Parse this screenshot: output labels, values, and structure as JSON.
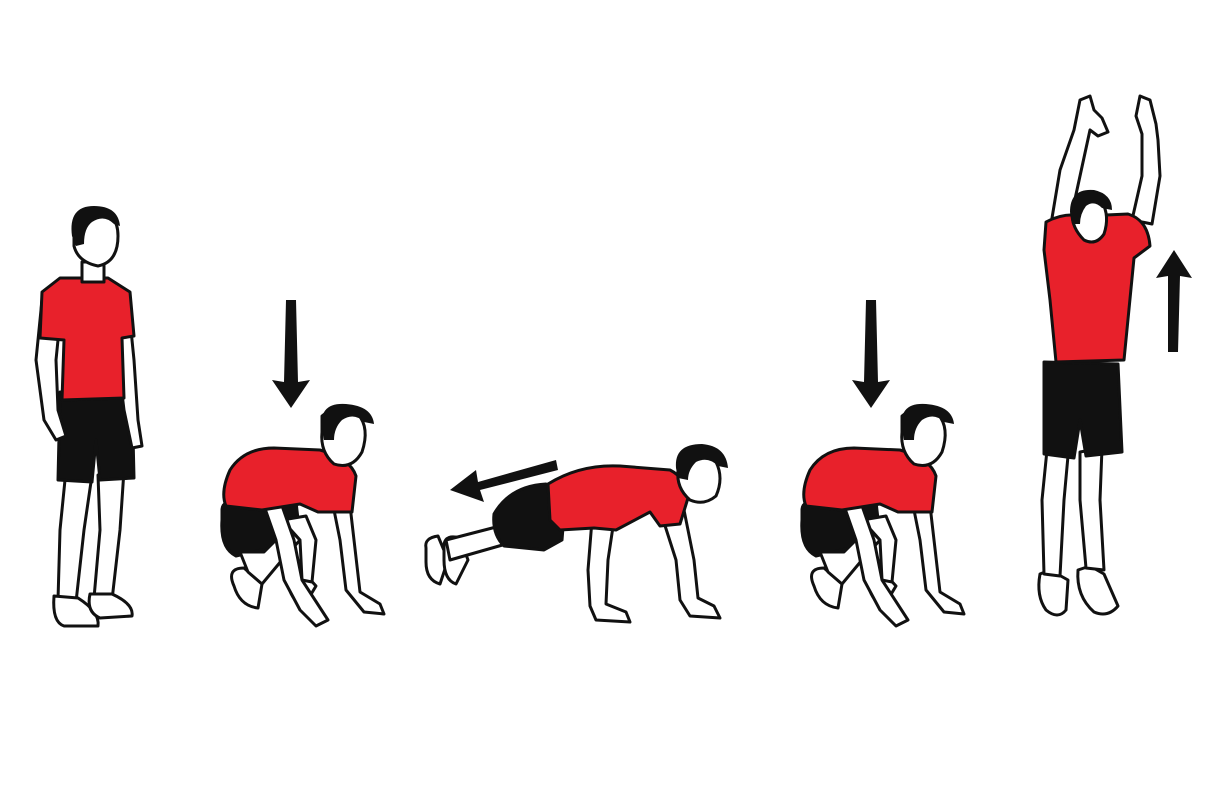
{
  "colors": {
    "background": "#ffffff",
    "shirt": "#e8212b",
    "shorts": "#111111",
    "outline": "#111111",
    "arrow": "#111111"
  },
  "figures": [
    {
      "pose": "standing"
    },
    {
      "pose": "squat"
    },
    {
      "pose": "plank"
    },
    {
      "pose": "squat"
    },
    {
      "pose": "jump"
    }
  ],
  "arrows": [
    {
      "direction": "down"
    },
    {
      "direction": "left"
    },
    {
      "direction": "down"
    },
    {
      "direction": "up"
    }
  ]
}
